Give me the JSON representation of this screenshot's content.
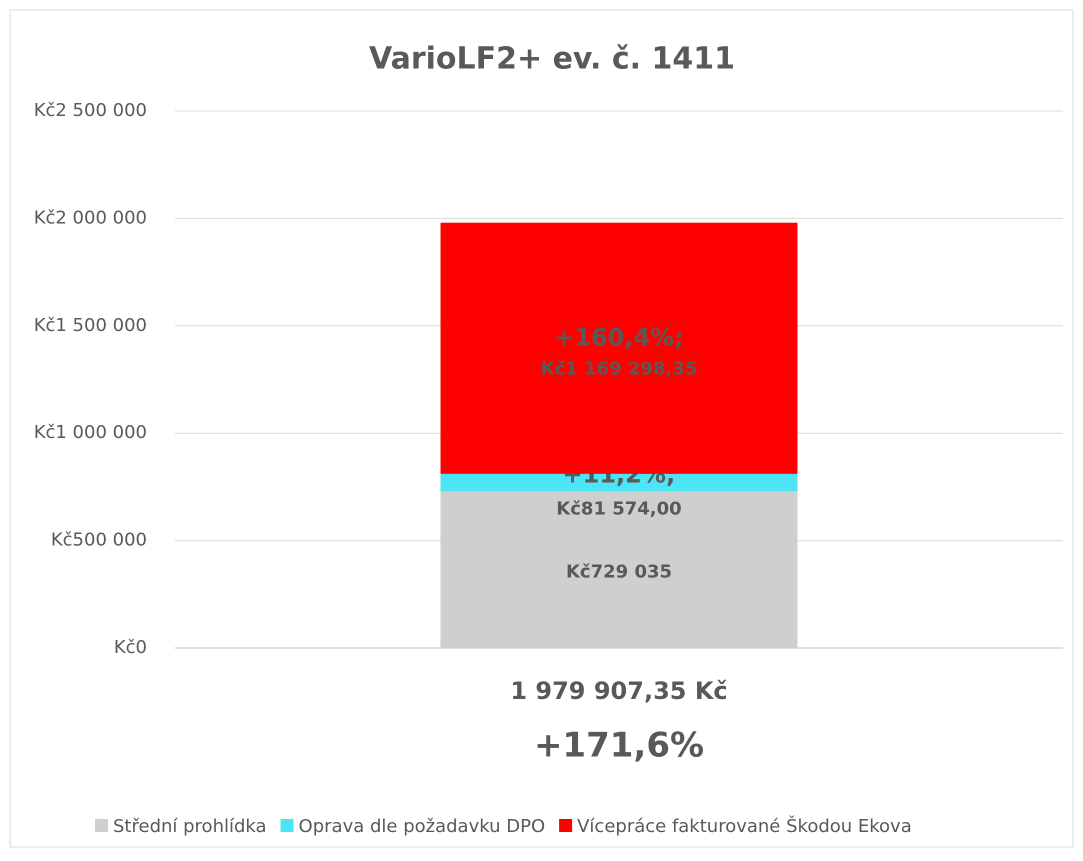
{
  "chart_data": {
    "type": "stacked_bar",
    "title": "VarioLF2+ ev. č. 1411",
    "categories": [
      "1 979 907,35 Kč"
    ],
    "annotations": [
      "+171,6%"
    ],
    "series": [
      {
        "name": "Střední prohlídka",
        "color": "#d0cecf",
        "values": [
          729035
        ],
        "value_labels": [
          "Kč729 035"
        ]
      },
      {
        "name": "Oprava dle požadavku DPO",
        "color": "#4de5f5",
        "values": [
          81574
        ],
        "value_labels": [
          "Kč81 574,00"
        ],
        "percent_labels": [
          "+11,2%;"
        ]
      },
      {
        "name": "Vícepráce fakturované Škodou Ekova",
        "color": "#ff0000",
        "values": [
          1169298.35
        ],
        "value_labels": [
          "Kč1 169 298,35"
        ],
        "percent_labels": [
          "+160,4%;"
        ]
      }
    ],
    "ylim": [
      0,
      2500000
    ],
    "yticks": [
      {
        "value": 0,
        "label": "Kč0"
      },
      {
        "value": 500000,
        "label": "Kč500 000"
      },
      {
        "value": 1000000,
        "label": "Kč1 000 000"
      },
      {
        "value": 1500000,
        "label": "Kč1 500 000"
      },
      {
        "value": 2000000,
        "label": "Kč2 000 000"
      },
      {
        "value": 2500000,
        "label": "Kč2 500 000"
      }
    ],
    "grid": true,
    "legend": "bottom"
  }
}
